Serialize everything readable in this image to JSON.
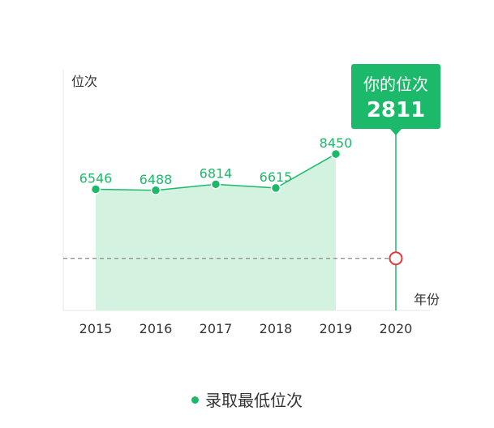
{
  "chart_data": {
    "type": "area",
    "ylabel": "位次",
    "xlabel": "年份",
    "categories": [
      "2015",
      "2016",
      "2017",
      "2018",
      "2019",
      "2020"
    ],
    "series": [
      {
        "name": "录取最低位次",
        "x": [
          "2015",
          "2016",
          "2017",
          "2018",
          "2019"
        ],
        "values": [
          6546,
          6488,
          6814,
          6615,
          8450
        ]
      }
    ],
    "value_labels": [
      "6546",
      "6488",
      "6814",
      "6615",
      "8450"
    ],
    "your_rank": {
      "title": "你的位次",
      "value": 2811,
      "value_label": "2811",
      "year": "2020"
    },
    "ylim": [
      0,
      13000
    ],
    "colors": {
      "line": "#1db96a",
      "area": "#d3f2e0",
      "marker": "#e03a3a",
      "reference": "#888888"
    },
    "legend": {
      "position": "bottom",
      "label": "录取最低位次"
    },
    "grid": false
  }
}
